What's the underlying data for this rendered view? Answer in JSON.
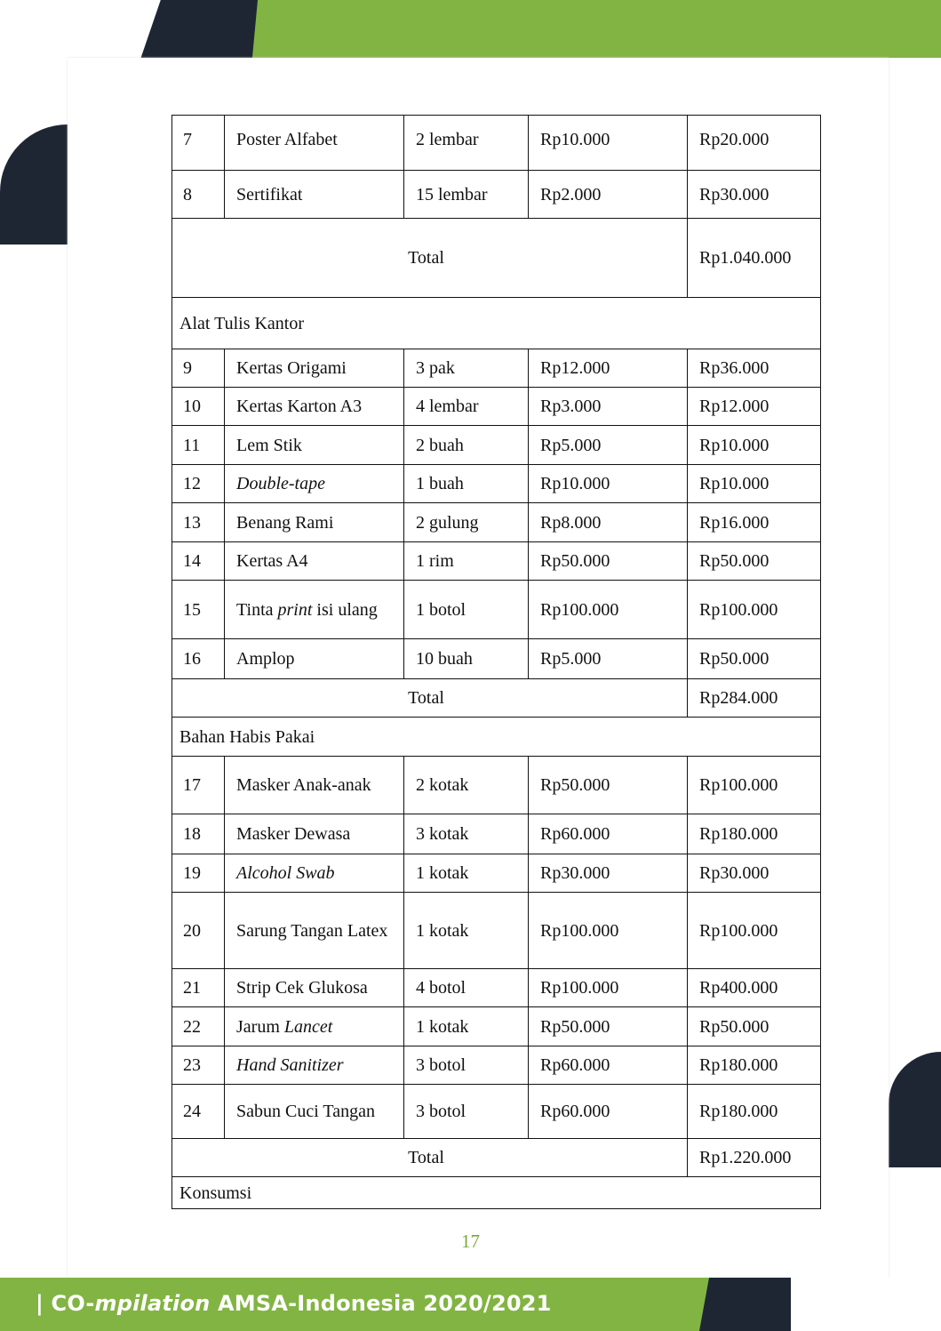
{
  "footer": {
    "prefix": "| CO-",
    "italic": "mpilation",
    "suffix": " AMSA-Indonesia 2020/2021"
  },
  "page_number": "17",
  "colors": {
    "accent_green": "#82b443",
    "navy": "#1e2634",
    "page_number": "#7aa83e"
  },
  "table": {
    "rows": [
      {
        "type": "item",
        "no": "7",
        "name": [
          {
            "t": "Poster Alfabet"
          }
        ],
        "qty": "2 lembar",
        "price": "Rp10.000",
        "total": "Rp20.000",
        "h": 62,
        "top": true
      },
      {
        "type": "item",
        "no": "8",
        "name": [
          {
            "t": "Sertifikat"
          }
        ],
        "qty": "15 lembar",
        "price": "Rp2.000",
        "total": "Rp30.000",
        "h": 54,
        "top": true
      },
      {
        "type": "total",
        "label": "Total",
        "total": "Rp1.040.000",
        "h": 89
      },
      {
        "type": "section",
        "label": "Alat Tulis Kantor",
        "h": 58
      },
      {
        "type": "item",
        "no": "9",
        "name": [
          {
            "t": "Kertas Origami"
          }
        ],
        "qty": "3 pak",
        "price": "Rp12.000",
        "total": "Rp36.000",
        "h": 43
      },
      {
        "type": "item",
        "no": "10",
        "name": [
          {
            "t": "Kertas Karton A3"
          }
        ],
        "qty": "4 lembar",
        "price": "Rp3.000",
        "total": "Rp12.000",
        "h": 43
      },
      {
        "type": "item",
        "no": "11",
        "name": [
          {
            "t": "Lem Stik"
          }
        ],
        "qty": "2 buah",
        "price": "Rp5.000",
        "total": "Rp10.000",
        "h": 44
      },
      {
        "type": "item",
        "no": "12",
        "name": [
          {
            "t": "Double-tape",
            "i": true
          }
        ],
        "qty": "1 buah",
        "price": "Rp10.000",
        "total": "Rp10.000",
        "h": 43
      },
      {
        "type": "item",
        "no": "13",
        "name": [
          {
            "t": "Benang Rami"
          }
        ],
        "qty": "2 gulung",
        "price": "Rp8.000",
        "total": "Rp16.000",
        "h": 44
      },
      {
        "type": "item",
        "no": "14",
        "name": [
          {
            "t": "Kertas A4"
          }
        ],
        "qty": "1 rim",
        "price": "Rp50.000",
        "total": "Rp50.000",
        "h": 43
      },
      {
        "type": "item",
        "no": "15",
        "name": [
          {
            "t": "Tinta "
          },
          {
            "t": "print",
            "i": true
          },
          {
            "t": " isi ulang"
          }
        ],
        "qty": "1 botol",
        "price": "Rp100.000",
        "total": "Rp100.000",
        "h": 66
      },
      {
        "type": "item",
        "no": "16",
        "name": [
          {
            "t": "Amplop"
          }
        ],
        "qty": "10 buah",
        "price": "Rp5.000",
        "total": "Rp50.000",
        "h": 45
      },
      {
        "type": "total",
        "label": "Total",
        "total": "Rp284.000",
        "h": 43
      },
      {
        "type": "section",
        "label": "Bahan Habis Pakai",
        "h": 44
      },
      {
        "type": "item",
        "no": "17",
        "name": [
          {
            "t": "Masker Anak-anak"
          }
        ],
        "qty": "2 kotak",
        "price": "Rp50.000",
        "total": "Rp100.000",
        "h": 65
      },
      {
        "type": "item",
        "no": "18",
        "name": [
          {
            "t": "Masker Dewasa"
          }
        ],
        "qty": "3 kotak",
        "price": "Rp60.000",
        "total": "Rp180.000",
        "h": 45
      },
      {
        "type": "item",
        "no": "19",
        "name": [
          {
            "t": "Alcohol Swab",
            "i": true
          }
        ],
        "qty": "1 kotak",
        "price": "Rp30.000",
        "total": "Rp30.000",
        "h": 43
      },
      {
        "type": "item",
        "no": "20",
        "name": [
          {
            "t": "Sarung Tangan Latex"
          }
        ],
        "qty": "1 kotak",
        "price": "Rp100.000",
        "total": "Rp100.000",
        "h": 86
      },
      {
        "type": "item",
        "no": "21",
        "name": [
          {
            "t": "Strip Cek Glukosa"
          }
        ],
        "qty": "4 botol",
        "price": "Rp100.000",
        "total": "Rp400.000",
        "h": 43
      },
      {
        "type": "item",
        "no": "22",
        "name": [
          {
            "t": "Jarum "
          },
          {
            "t": "Lancet",
            "i": true
          }
        ],
        "qty": "1 kotak",
        "price": "Rp50.000",
        "total": "Rp50.000",
        "h": 44
      },
      {
        "type": "item",
        "no": "23",
        "name": [
          {
            "t": "Hand Sanitizer",
            "i": true
          }
        ],
        "qty": "3 botol",
        "price": "Rp60.000",
        "total": "Rp180.000",
        "h": 43
      },
      {
        "type": "item",
        "no": "24",
        "name": [
          {
            "t": "Sabun Cuci Tangan"
          }
        ],
        "qty": "3 botol",
        "price": "Rp60.000",
        "total": "Rp180.000",
        "h": 61
      },
      {
        "type": "total",
        "label": "Total",
        "total": "Rp1.220.000",
        "h": 43
      },
      {
        "type": "section",
        "label": "Konsumsi",
        "h": 36
      }
    ]
  }
}
